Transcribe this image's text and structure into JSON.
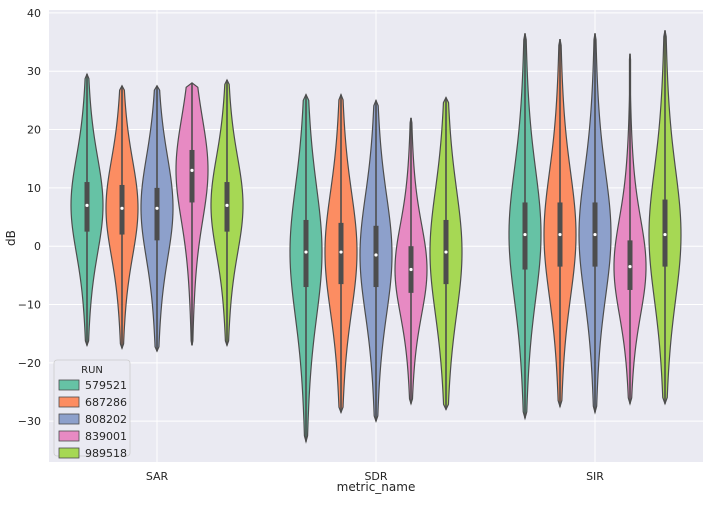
{
  "chart_data": {
    "type": "violin",
    "xlabel": "metric_name",
    "ylabel": "dB",
    "ylim": [
      -37,
      40.5
    ],
    "yticks": [
      -30,
      -20,
      -10,
      0,
      10,
      20,
      30,
      40
    ],
    "grid": true,
    "legend_position": "lower-left",
    "categories": [
      "SAR",
      "SDR",
      "SIR"
    ],
    "legend": {
      "title": "RUN",
      "entries": [
        "579521",
        "687286",
        "808202",
        "839001",
        "989518"
      ]
    },
    "series": [
      {
        "name": "579521",
        "color": "#66c2a5",
        "stats": [
          {
            "min": -17,
            "q1": 2.5,
            "median": 7,
            "q3": 11,
            "max": 29.5
          },
          {
            "min": -33.5,
            "q1": -7,
            "median": -1,
            "q3": 4.5,
            "max": 26
          },
          {
            "min": -29.5,
            "q1": -4,
            "median": 2,
            "q3": 7.5,
            "max": 36.5
          }
        ]
      },
      {
        "name": "687286",
        "color": "#fc8d62",
        "stats": [
          {
            "min": -17.5,
            "q1": 2,
            "median": 6.5,
            "q3": 10.5,
            "max": 27.5
          },
          {
            "min": -28.5,
            "q1": -6.5,
            "median": -1,
            "q3": 4,
            "max": 26
          },
          {
            "min": -27.5,
            "q1": -3.5,
            "median": 2,
            "q3": 7.5,
            "max": 35.5
          }
        ]
      },
      {
        "name": "808202",
        "color": "#8da0cb",
        "stats": [
          {
            "min": -18,
            "q1": 1,
            "median": 6.5,
            "q3": 10,
            "max": 27.5
          },
          {
            "min": -30,
            "q1": -7,
            "median": -1.5,
            "q3": 3.5,
            "max": 25
          },
          {
            "min": -28.5,
            "q1": -3.5,
            "median": 2,
            "q3": 7.5,
            "max": 36.5
          }
        ]
      },
      {
        "name": "839001",
        "color": "#e78ac3",
        "stats": [
          {
            "min": -17,
            "q1": 7.5,
            "median": 13,
            "q3": 16.5,
            "max": 28
          },
          {
            "min": -27,
            "q1": -8,
            "median": -4,
            "q3": 0,
            "max": 22
          },
          {
            "min": -27,
            "q1": -7.5,
            "median": -3.5,
            "q3": 1,
            "max": 33
          }
        ]
      },
      {
        "name": "989518",
        "color": "#a6d854",
        "stats": [
          {
            "min": -17,
            "q1": 2.5,
            "median": 7,
            "q3": 11,
            "max": 28.5
          },
          {
            "min": -28,
            "q1": -6.5,
            "median": -1,
            "q3": 4.5,
            "max": 25.5
          },
          {
            "min": -27,
            "q1": -3.5,
            "median": 2,
            "q3": 8,
            "max": 37
          }
        ]
      }
    ]
  }
}
